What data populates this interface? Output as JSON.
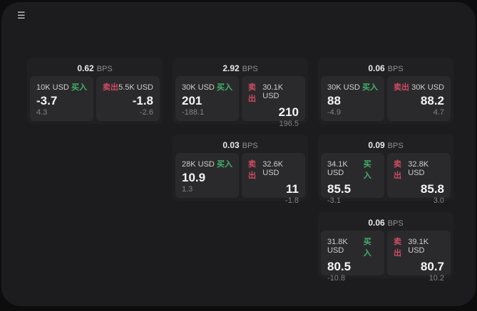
{
  "app": {
    "menu_icon_glyph": "☰"
  },
  "labels": {
    "bps_unit": "BPS",
    "buy": "买入",
    "sell": "卖出"
  },
  "colors": {
    "buy_green": "#42b169",
    "sell_red": "#d14b62",
    "page_bg": "#1c1c1e",
    "card_bg": "#202022",
    "panel_bg": "#2a2a2c"
  },
  "cards": [
    {
      "bps": "0.62",
      "grid": {
        "row": 1,
        "col": 1
      },
      "buy": {
        "size": "10K USD",
        "value": "-3.7",
        "sub": "4.3"
      },
      "sell": {
        "size": "5.5K USD",
        "value": "-1.8",
        "sub": "-2.6"
      }
    },
    {
      "bps": "2.92",
      "grid": {
        "row": 1,
        "col": 2
      },
      "buy": {
        "size": "30K USD",
        "value": "201",
        "sub": "-188.1"
      },
      "sell": {
        "size": "30.1K USD",
        "value": "210",
        "sub": "196.5"
      }
    },
    {
      "bps": "0.06",
      "grid": {
        "row": 1,
        "col": 3
      },
      "buy": {
        "size": "30K USD",
        "value": "88",
        "sub": "-4.9"
      },
      "sell": {
        "size": "30K USD",
        "value": "88.2",
        "sub": "4.7"
      }
    },
    {
      "bps": "0.03",
      "grid": {
        "row": 2,
        "col": 2
      },
      "buy": {
        "size": "28K USD",
        "value": "10.9",
        "sub": "1.3"
      },
      "sell": {
        "size": "32.6K USD",
        "value": "11",
        "sub": "-1.8"
      }
    },
    {
      "bps": "0.09",
      "grid": {
        "row": 2,
        "col": 3
      },
      "buy": {
        "size": "34.1K USD",
        "value": "85.5",
        "sub": "-3.1"
      },
      "sell": {
        "size": "32.8K USD",
        "value": "85.8",
        "sub": "3.0"
      }
    },
    {
      "bps": "0.06",
      "grid": {
        "row": 3,
        "col": 3
      },
      "buy": {
        "size": "31.8K USD",
        "value": "80.5",
        "sub": "-10.8"
      },
      "sell": {
        "size": "39.1K USD",
        "value": "80.7",
        "sub": "10.2"
      }
    }
  ]
}
